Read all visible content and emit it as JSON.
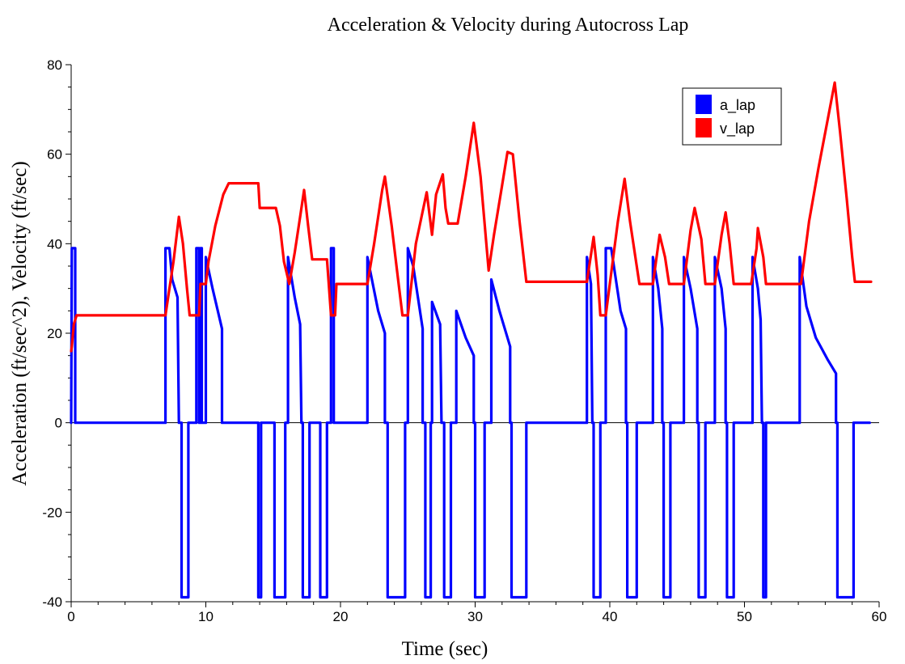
{
  "chart_data": {
    "type": "line",
    "title": "Acceleration & Velocity during Autocross Lap",
    "xlabel": "Time (sec)",
    "ylabel": "Acceleration (ft/sec^2),  Velocity (ft/sec)",
    "xlim": [
      0,
      60
    ],
    "ylim": [
      -40,
      80
    ],
    "x_ticks": [
      0,
      10,
      20,
      30,
      40,
      50,
      60
    ],
    "y_ticks": [
      -40,
      -20,
      0,
      20,
      40,
      60,
      80
    ],
    "grid": false,
    "legend_position": "top-right",
    "series": [
      {
        "name": "a_lap",
        "color": "#0000ff",
        "points": [
          [
            0,
            0
          ],
          [
            0.05,
            39
          ],
          [
            0.3,
            39
          ],
          [
            0.3,
            0
          ],
          [
            7.0,
            0
          ],
          [
            7.0,
            39
          ],
          [
            7.3,
            39
          ],
          [
            7.5,
            32
          ],
          [
            7.9,
            28
          ],
          [
            8.0,
            0
          ],
          [
            8.2,
            0
          ],
          [
            8.2,
            -39
          ],
          [
            8.7,
            -39
          ],
          [
            8.7,
            0
          ],
          [
            9.3,
            0
          ],
          [
            9.3,
            39
          ],
          [
            9.5,
            39
          ],
          [
            9.5,
            0
          ],
          [
            9.6,
            0
          ],
          [
            9.6,
            39
          ],
          [
            9.7,
            39
          ],
          [
            9.7,
            0
          ],
          [
            10.0,
            0
          ],
          [
            10.0,
            37
          ],
          [
            10.5,
            30
          ],
          [
            11.2,
            21
          ],
          [
            11.2,
            0
          ],
          [
            13.9,
            0
          ],
          [
            13.9,
            -39
          ],
          [
            14.1,
            -39
          ],
          [
            14.1,
            0
          ],
          [
            15.1,
            0
          ],
          [
            15.1,
            -39
          ],
          [
            15.9,
            -39
          ],
          [
            15.9,
            0
          ],
          [
            16.1,
            0
          ],
          [
            16.1,
            37
          ],
          [
            16.6,
            28
          ],
          [
            17.0,
            22
          ],
          [
            17.1,
            0
          ],
          [
            17.2,
            0
          ],
          [
            17.2,
            -39
          ],
          [
            17.7,
            -39
          ],
          [
            17.7,
            0
          ],
          [
            18.5,
            0
          ],
          [
            18.5,
            -39
          ],
          [
            19.0,
            -39
          ],
          [
            19.0,
            0
          ],
          [
            19.3,
            0
          ],
          [
            19.3,
            39
          ],
          [
            19.5,
            39
          ],
          [
            19.5,
            0
          ],
          [
            22.0,
            0
          ],
          [
            22.0,
            37
          ],
          [
            22.8,
            25
          ],
          [
            23.3,
            20
          ],
          [
            23.3,
            0
          ],
          [
            23.5,
            0
          ],
          [
            23.5,
            -39
          ],
          [
            24.8,
            -39
          ],
          [
            24.8,
            0
          ],
          [
            25.0,
            0
          ],
          [
            25.0,
            39
          ],
          [
            25.4,
            35
          ],
          [
            26.1,
            21
          ],
          [
            26.1,
            0
          ],
          [
            26.3,
            0
          ],
          [
            26.3,
            -39
          ],
          [
            26.7,
            -39
          ],
          [
            26.7,
            0
          ],
          [
            26.8,
            0
          ],
          [
            26.8,
            27
          ],
          [
            27.4,
            22
          ],
          [
            27.5,
            0
          ],
          [
            27.7,
            0
          ],
          [
            27.7,
            -39
          ],
          [
            28.2,
            -39
          ],
          [
            28.2,
            0
          ],
          [
            28.6,
            0
          ],
          [
            28.6,
            25
          ],
          [
            29.3,
            19
          ],
          [
            29.9,
            15
          ],
          [
            29.9,
            0
          ],
          [
            30.0,
            0
          ],
          [
            30.0,
            -39
          ],
          [
            30.7,
            -39
          ],
          [
            30.7,
            0
          ],
          [
            31.2,
            0
          ],
          [
            31.2,
            32
          ],
          [
            31.8,
            25
          ],
          [
            32.6,
            17
          ],
          [
            32.6,
            0
          ],
          [
            32.7,
            0
          ],
          [
            32.7,
            -39
          ],
          [
            33.8,
            -39
          ],
          [
            33.8,
            0
          ],
          [
            38.3,
            0
          ],
          [
            38.3,
            37
          ],
          [
            38.6,
            31
          ],
          [
            38.7,
            0
          ],
          [
            38.8,
            0
          ],
          [
            38.8,
            -39
          ],
          [
            39.3,
            -39
          ],
          [
            39.3,
            0
          ],
          [
            39.7,
            0
          ],
          [
            39.7,
            39
          ],
          [
            40.1,
            39
          ],
          [
            40.8,
            25
          ],
          [
            41.2,
            21
          ],
          [
            41.2,
            0
          ],
          [
            41.3,
            0
          ],
          [
            41.3,
            -39
          ],
          [
            42.0,
            -39
          ],
          [
            42.0,
            0
          ],
          [
            43.2,
            0
          ],
          [
            43.2,
            37
          ],
          [
            43.6,
            30
          ],
          [
            43.9,
            21
          ],
          [
            43.9,
            0
          ],
          [
            44.0,
            0
          ],
          [
            44.0,
            -39
          ],
          [
            44.5,
            -39
          ],
          [
            44.5,
            0
          ],
          [
            45.5,
            0
          ],
          [
            45.5,
            37
          ],
          [
            46.0,
            30
          ],
          [
            46.5,
            21
          ],
          [
            46.5,
            0
          ],
          [
            46.6,
            0
          ],
          [
            46.6,
            -39
          ],
          [
            47.1,
            -39
          ],
          [
            47.1,
            0
          ],
          [
            47.8,
            0
          ],
          [
            47.8,
            37
          ],
          [
            48.3,
            30
          ],
          [
            48.6,
            21
          ],
          [
            48.6,
            0
          ],
          [
            48.7,
            0
          ],
          [
            48.7,
            -39
          ],
          [
            49.2,
            -39
          ],
          [
            49.2,
            0
          ],
          [
            50.6,
            0
          ],
          [
            50.6,
            37
          ],
          [
            51.0,
            30
          ],
          [
            51.2,
            23
          ],
          [
            51.3,
            0
          ],
          [
            51.4,
            0
          ],
          [
            51.4,
            -39
          ],
          [
            51.6,
            -39
          ],
          [
            51.6,
            0
          ],
          [
            54.1,
            0
          ],
          [
            54.1,
            37
          ],
          [
            54.6,
            26
          ],
          [
            55.3,
            19
          ],
          [
            56.2,
            14
          ],
          [
            56.8,
            11
          ],
          [
            56.8,
            0
          ],
          [
            56.9,
            0
          ],
          [
            56.9,
            -39
          ],
          [
            58.1,
            -39
          ],
          [
            58.1,
            0
          ],
          [
            59.3,
            0
          ]
        ]
      },
      {
        "name": "v_lap",
        "color": "#ff0000",
        "points": [
          [
            0,
            16
          ],
          [
            0.05,
            17
          ],
          [
            0.2,
            22
          ],
          [
            0.4,
            24
          ],
          [
            7.0,
            24
          ],
          [
            7.3,
            30
          ],
          [
            7.6,
            36
          ],
          [
            8.0,
            46
          ],
          [
            8.3,
            40
          ],
          [
            8.6,
            30
          ],
          [
            8.8,
            24
          ],
          [
            9.5,
            24
          ],
          [
            9.6,
            31
          ],
          [
            10.0,
            31
          ],
          [
            10.2,
            36
          ],
          [
            10.7,
            44
          ],
          [
            11.3,
            51
          ],
          [
            11.7,
            53.5
          ],
          [
            13.9,
            53.5
          ],
          [
            14.0,
            48
          ],
          [
            15.2,
            48
          ],
          [
            15.5,
            44
          ],
          [
            15.8,
            36
          ],
          [
            16.2,
            31
          ],
          [
            16.6,
            38
          ],
          [
            17.0,
            46
          ],
          [
            17.3,
            52
          ],
          [
            17.6,
            44
          ],
          [
            17.9,
            36.5
          ],
          [
            19.0,
            36.5
          ],
          [
            19.3,
            24
          ],
          [
            19.6,
            24
          ],
          [
            19.7,
            31
          ],
          [
            22.0,
            31
          ],
          [
            22.5,
            40
          ],
          [
            23.1,
            52
          ],
          [
            23.3,
            55
          ],
          [
            23.8,
            44
          ],
          [
            24.2,
            34
          ],
          [
            24.6,
            24
          ],
          [
            25.0,
            24
          ],
          [
            25.6,
            40
          ],
          [
            26.4,
            51.5
          ],
          [
            26.8,
            42
          ],
          [
            27.1,
            51
          ],
          [
            27.6,
            55.5
          ],
          [
            27.8,
            48
          ],
          [
            28.0,
            44.5
          ],
          [
            28.7,
            44.5
          ],
          [
            29.3,
            55
          ],
          [
            29.9,
            67
          ],
          [
            30.4,
            55
          ],
          [
            31.0,
            34
          ],
          [
            31.4,
            42
          ],
          [
            32.0,
            53
          ],
          [
            32.4,
            60.5
          ],
          [
            32.8,
            60
          ],
          [
            33.3,
            45
          ],
          [
            33.8,
            31.5
          ],
          [
            38.3,
            31.5
          ],
          [
            38.8,
            41.5
          ],
          [
            39.1,
            33
          ],
          [
            39.3,
            24
          ],
          [
            39.7,
            24
          ],
          [
            40.0,
            31
          ],
          [
            40.6,
            45
          ],
          [
            41.1,
            54.5
          ],
          [
            41.5,
            45
          ],
          [
            42.2,
            31
          ],
          [
            43.2,
            31
          ],
          [
            43.7,
            42
          ],
          [
            44.1,
            37
          ],
          [
            44.4,
            31
          ],
          [
            45.5,
            31
          ],
          [
            46.0,
            43
          ],
          [
            46.3,
            48
          ],
          [
            46.8,
            41
          ],
          [
            47.1,
            31
          ],
          [
            47.8,
            31
          ],
          [
            48.3,
            42
          ],
          [
            48.6,
            47
          ],
          [
            48.9,
            40
          ],
          [
            49.2,
            31
          ],
          [
            50.5,
            31
          ],
          [
            50.9,
            39
          ],
          [
            51.0,
            43.5
          ],
          [
            51.4,
            37
          ],
          [
            51.6,
            31
          ],
          [
            54.2,
            31
          ],
          [
            54.8,
            45
          ],
          [
            55.5,
            57
          ],
          [
            56.2,
            68
          ],
          [
            56.7,
            76
          ],
          [
            57.1,
            65
          ],
          [
            57.6,
            50
          ],
          [
            58.0,
            37
          ],
          [
            58.2,
            31.5
          ],
          [
            59.4,
            31.5
          ]
        ]
      }
    ]
  }
}
